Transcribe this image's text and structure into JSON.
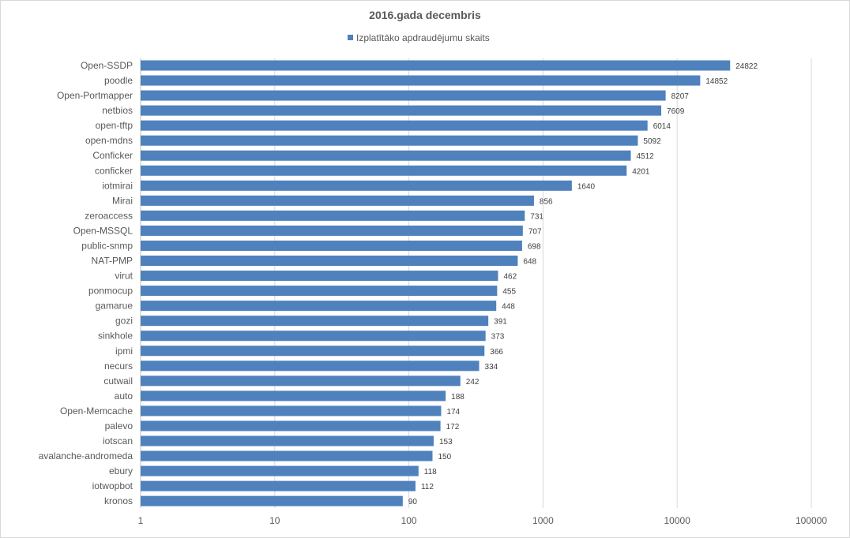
{
  "chart_data": {
    "type": "bar",
    "orientation": "horizontal",
    "title": "2016.gada decembris",
    "legend_position": "top",
    "x_scale": "log",
    "xlim": [
      1,
      100000
    ],
    "x_ticks": [
      "1",
      "10",
      "100",
      "1000",
      "10000",
      "100000"
    ],
    "grid": true,
    "categories": [
      "Open-SSDP",
      "poodle",
      "Open-Portmapper",
      "netbios",
      "open-tftp",
      "open-mdns",
      "Conficker",
      "conficker",
      "iotmirai",
      "Mirai",
      "zeroaccess",
      "Open-MSSQL",
      "public-snmp",
      "NAT-PMP",
      "virut",
      "ponmocup",
      "gamarue",
      "gozi",
      "sinkhole",
      "ipmi",
      "necurs",
      "cutwail",
      "auto",
      "Open-Memcache",
      "palevo",
      "iotscan",
      "avalanche-andromeda",
      "ebury",
      "iotwopbot",
      "kronos"
    ],
    "series": [
      {
        "name": "Izplatītāko apdraudējumu skaits",
        "color": "#4f81bd",
        "values": [
          24822,
          14852,
          8207,
          7609,
          6014,
          5092,
          4512,
          4201,
          1640,
          856,
          731,
          707,
          698,
          648,
          462,
          455,
          448,
          391,
          373,
          366,
          334,
          242,
          188,
          174,
          172,
          153,
          150,
          118,
          112,
          90
        ]
      }
    ]
  }
}
